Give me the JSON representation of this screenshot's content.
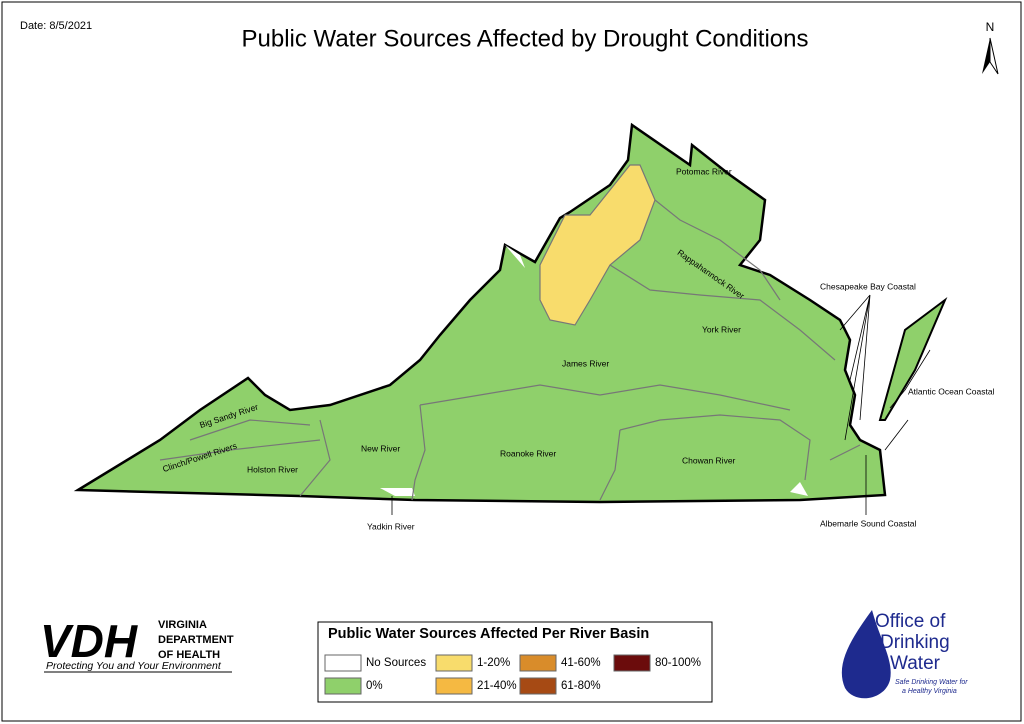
{
  "header": {
    "date": "Date: 8/5/2021",
    "title": "Public Water Sources Affected by Drought Conditions",
    "north": "N"
  },
  "map": {
    "basins": [
      "Potomac River",
      "Rappahannock River",
      "York River",
      "James River",
      "Roanoke River",
      "Chowan River",
      "New River",
      "Big Sandy River",
      "Clinch/Powell Rivers",
      "Holston River",
      "Yadkin River",
      "Chesapeake Bay Coastal",
      "Atlantic Ocean Coastal",
      "Albemarle Sound Coastal"
    ]
  },
  "legend": {
    "title": "Public Water Sources Affected Per River Basin",
    "items": [
      {
        "label": "No Sources",
        "color": "#ffffff"
      },
      {
        "label": "0%",
        "color": "#8fd06b"
      },
      {
        "label": "1-20%",
        "color": "#f8dc6c"
      },
      {
        "label": "21-40%",
        "color": "#f5b942"
      },
      {
        "label": "41-60%",
        "color": "#d98c2a"
      },
      {
        "label": "61-80%",
        "color": "#a64a14"
      },
      {
        "label": "80-100%",
        "color": "#6b0c0c"
      }
    ]
  },
  "logos": {
    "vdh": {
      "mark": "VDH",
      "name": [
        "VIRGINIA",
        "DEPARTMENT",
        "OF HEALTH"
      ],
      "tagline": "Protecting You and Your Environment"
    },
    "odw": {
      "name": [
        "Office of",
        "Drinking",
        "Water"
      ],
      "tagline": [
        "Safe Drinking Water for",
        "a Healthy Virginia"
      ]
    }
  }
}
